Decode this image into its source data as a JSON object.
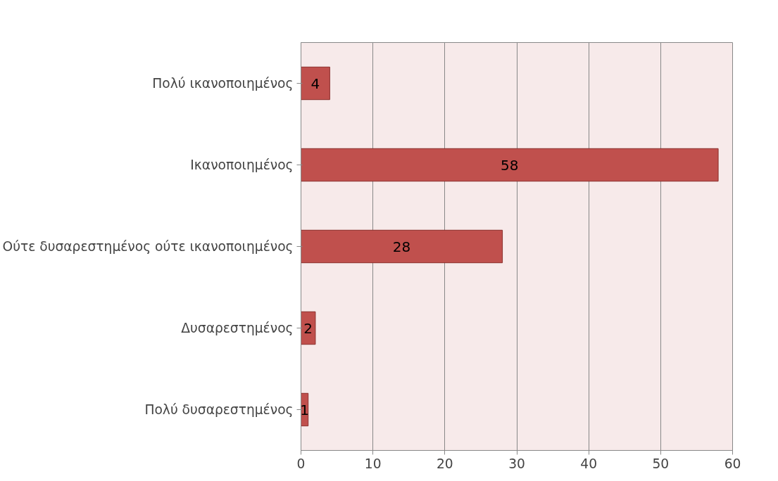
{
  "chart_data": {
    "type": "bar",
    "orientation": "horizontal",
    "categories": [
      "Πολύ ικανοποιημένος",
      "Ικανοποιημένος",
      "Ούτε δυσαρεστημένος ούτε ικανοποιημένος",
      "Δυσαρεστημένος",
      "Πολύ δυσαρεστημένος"
    ],
    "values": [
      4,
      58,
      28,
      2,
      1
    ],
    "color": "#c0504d",
    "xlim": [
      0,
      60
    ],
    "xticks": [
      0,
      10,
      20,
      30,
      40,
      50,
      60
    ],
    "grid": "x",
    "data_labels": true
  }
}
